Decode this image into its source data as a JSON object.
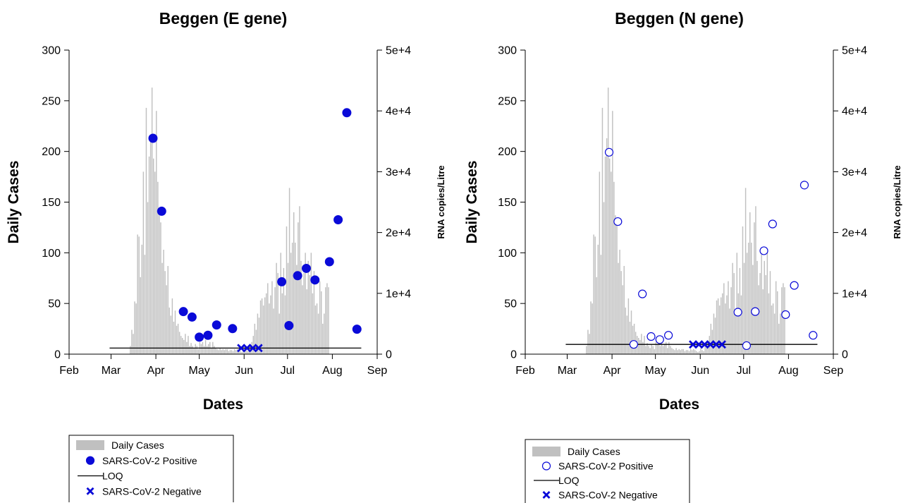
{
  "colors": {
    "bars": "#c0c0c0",
    "points": "#0a0ad8",
    "loq": "#000000"
  },
  "chart_data": [
    {
      "type": "bar",
      "title": "Beggen (E gene)",
      "xlabel": "Dates",
      "ylabel": "Daily Cases",
      "y2label": "RNA copies/Litre",
      "x_ticks": [
        "Feb",
        "Mar",
        "Apr",
        "May",
        "Jun",
        "Jul",
        "Aug",
        "Sep"
      ],
      "y_ticks": [
        "0",
        "50",
        "100",
        "150",
        "200",
        "250",
        "300"
      ],
      "y2_ticks": [
        "0",
        "1e+4",
        "2e+4",
        "3e+4",
        "4e+4",
        "5e+4"
      ],
      "ylim": [
        0,
        300
      ],
      "y2lim": [
        0,
        50000
      ],
      "x_range": [
        "2020-02-01",
        "2020-09-01"
      ],
      "marker_style": "filled",
      "legend": {
        "position": "bottom",
        "entries": [
          "Daily Cases",
          "SARS-CoV-2 Positive",
          "LOQ",
          "SARS-CoV-2 Negative"
        ]
      },
      "daily_cases": {
        "start_date": "2020-03-14",
        "values": [
          8,
          24,
          20,
          52,
          50,
          118,
          116,
          76,
          108,
          180,
          98,
          243,
          150,
          195,
          213,
          263,
          193,
          180,
          240,
          170,
          137,
          130,
          90,
          103,
          82,
          68,
          87,
          46,
          38,
          55,
          32,
          43,
          28,
          30,
          22,
          18,
          16,
          14,
          20,
          12,
          18,
          8,
          11,
          8,
          6,
          10,
          8,
          5,
          12,
          10,
          12,
          8,
          14,
          8,
          10,
          12,
          6,
          12,
          8,
          6,
          5,
          4,
          6,
          4,
          5,
          4,
          5,
          5,
          3,
          4,
          4,
          3,
          5,
          4,
          5,
          4,
          3,
          2,
          3,
          6,
          4,
          3,
          8,
          10,
          12,
          18,
          30,
          24,
          40,
          36,
          53,
          55,
          48,
          56,
          60,
          70,
          50,
          58,
          72,
          45,
          66,
          90,
          80,
          40,
          100,
          60,
          85,
          58,
          126,
          90,
          164,
          100,
          110,
          140,
          110,
          88,
          130,
          146,
          92,
          68,
          80,
          100,
          64,
          92,
          78,
          100,
          60,
          82,
          48,
          50,
          40,
          72,
          62,
          30,
          40,
          66,
          70,
          66
        ]
      },
      "loq": {
        "value": 1000,
        "x_start": "2020-02-29",
        "x_end": "2020-08-21"
      },
      "positive": [
        {
          "x": "2020-03-30",
          "y": 35500
        },
        {
          "x": "2020-04-05",
          "y": 23500
        },
        {
          "x": "2020-04-20",
          "y": 7000
        },
        {
          "x": "2020-04-26",
          "y": 6100
        },
        {
          "x": "2020-05-01",
          "y": 2800
        },
        {
          "x": "2020-05-07",
          "y": 3100
        },
        {
          "x": "2020-05-13",
          "y": 4800
        },
        {
          "x": "2020-05-24",
          "y": 4200
        },
        {
          "x": "2020-06-27",
          "y": 11900
        },
        {
          "x": "2020-07-02",
          "y": 4700
        },
        {
          "x": "2020-07-08",
          "y": 12900
        },
        {
          "x": "2020-07-14",
          "y": 14100
        },
        {
          "x": "2020-07-20",
          "y": 12200
        },
        {
          "x": "2020-07-30",
          "y": 15200
        },
        {
          "x": "2020-08-05",
          "y": 22100
        },
        {
          "x": "2020-08-11",
          "y": 39700
        },
        {
          "x": "2020-08-18",
          "y": 4100
        }
      ],
      "negative": [
        {
          "x": "2020-05-30",
          "y": 1000
        },
        {
          "x": "2020-06-03",
          "y": 1000
        },
        {
          "x": "2020-06-07",
          "y": 1000
        },
        {
          "x": "2020-06-11",
          "y": 1000
        }
      ]
    },
    {
      "type": "bar",
      "title": "Beggen (N gene)",
      "xlabel": "Dates",
      "ylabel": "Daily Cases",
      "y2label": "RNA copies/Litre",
      "x_ticks": [
        "Feb",
        "Mar",
        "Apr",
        "May",
        "Jun",
        "Jul",
        "Aug",
        "Sep"
      ],
      "y_ticks": [
        "0",
        "50",
        "100",
        "150",
        "200",
        "250",
        "300"
      ],
      "y2_ticks": [
        "0",
        "1e+4",
        "2e+4",
        "3e+4",
        "4e+4",
        "5e+4"
      ],
      "ylim": [
        0,
        300
      ],
      "y2lim": [
        0,
        50000
      ],
      "x_range": [
        "2020-02-01",
        "2020-09-01"
      ],
      "marker_style": "open",
      "legend": {
        "position": "bottom",
        "entries": [
          "Daily Cases",
          "SARS-CoV-2 Positive",
          "LOQ",
          "SARS-CoV-2 Negative"
        ]
      },
      "daily_cases": {
        "start_date": "2020-03-14",
        "values": [
          8,
          24,
          20,
          52,
          50,
          118,
          116,
          76,
          108,
          180,
          98,
          243,
          150,
          195,
          213,
          263,
          193,
          180,
          240,
          170,
          137,
          130,
          90,
          103,
          82,
          68,
          87,
          46,
          38,
          55,
          32,
          43,
          28,
          30,
          22,
          18,
          16,
          14,
          20,
          12,
          18,
          8,
          11,
          8,
          6,
          10,
          8,
          5,
          12,
          10,
          12,
          8,
          14,
          8,
          10,
          12,
          6,
          12,
          8,
          6,
          5,
          4,
          6,
          4,
          5,
          4,
          5,
          5,
          3,
          4,
          4,
          3,
          5,
          4,
          5,
          4,
          3,
          2,
          3,
          6,
          4,
          3,
          8,
          10,
          12,
          18,
          30,
          24,
          40,
          36,
          53,
          55,
          48,
          56,
          60,
          70,
          50,
          58,
          72,
          45,
          66,
          90,
          80,
          40,
          100,
          60,
          85,
          58,
          126,
          90,
          164,
          100,
          110,
          140,
          110,
          88,
          130,
          146,
          92,
          68,
          80,
          100,
          64,
          92,
          78,
          100,
          60,
          82,
          48,
          50,
          40,
          72,
          62,
          30,
          40,
          66,
          70,
          66
        ]
      },
      "loq": {
        "value": 1600,
        "x_start": "2020-02-29",
        "x_end": "2020-08-21"
      },
      "positive": [
        {
          "x": "2020-03-30",
          "y": 33200
        },
        {
          "x": "2020-04-05",
          "y": 21800
        },
        {
          "x": "2020-04-16",
          "y": 1600
        },
        {
          "x": "2020-04-22",
          "y": 9900
        },
        {
          "x": "2020-04-28",
          "y": 2900
        },
        {
          "x": "2020-05-04",
          "y": 2400
        },
        {
          "x": "2020-05-10",
          "y": 3100
        },
        {
          "x": "2020-06-27",
          "y": 6900
        },
        {
          "x": "2020-07-03",
          "y": 1400
        },
        {
          "x": "2020-07-09",
          "y": 7000
        },
        {
          "x": "2020-07-15",
          "y": 17000
        },
        {
          "x": "2020-07-21",
          "y": 21400
        },
        {
          "x": "2020-07-30",
          "y": 6500
        },
        {
          "x": "2020-08-05",
          "y": 11300
        },
        {
          "x": "2020-08-12",
          "y": 27800
        },
        {
          "x": "2020-08-18",
          "y": 3100
        }
      ],
      "negative": [
        {
          "x": "2020-05-27",
          "y": 1600
        },
        {
          "x": "2020-05-31",
          "y": 1600
        },
        {
          "x": "2020-06-04",
          "y": 1600
        },
        {
          "x": "2020-06-08",
          "y": 1600
        },
        {
          "x": "2020-06-12",
          "y": 1600
        },
        {
          "x": "2020-06-16",
          "y": 1600
        }
      ]
    }
  ]
}
